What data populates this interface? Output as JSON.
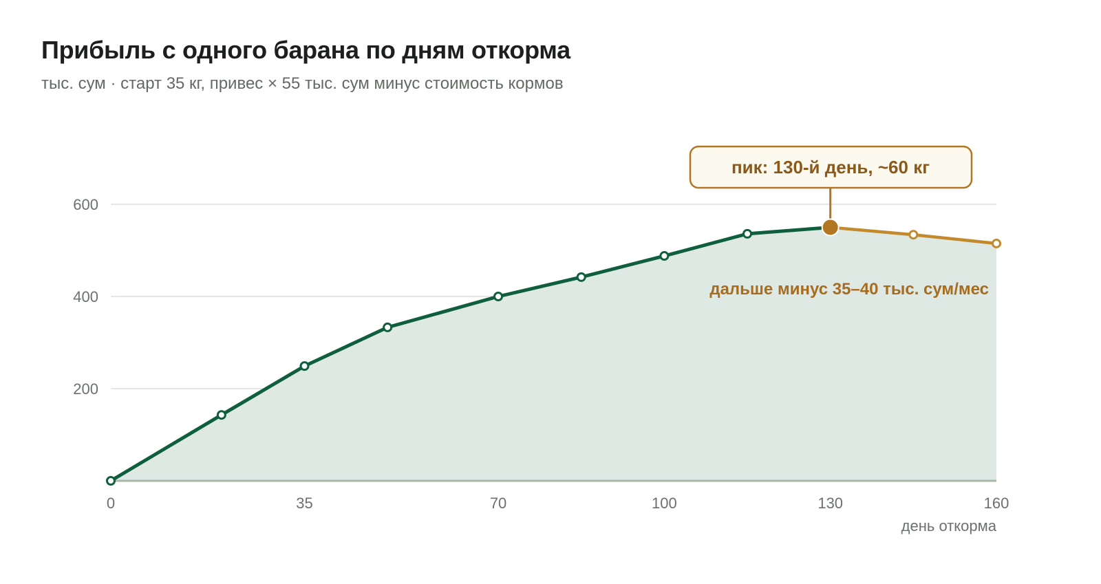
{
  "header": {
    "title": "Прибыль с одного барана по дням откорма",
    "subtitle": "тыс. сум · старт 35 кг, привес × 55 тыс. сум минус стоимость кормов"
  },
  "chart_data": {
    "type": "line",
    "title": "Прибыль с одного барана по дням откорма",
    "subtitle": "тыс. сум · старт 35 кг, привес × 55 тыс. сум минус стоимость кормов",
    "xlabel": "день откорма",
    "ylabel": "",
    "x_ticks": [
      0,
      35,
      70,
      100,
      130,
      160
    ],
    "y_ticks": [
      200,
      400,
      600
    ],
    "xlim": [
      0,
      160
    ],
    "ylim": [
      0,
      600
    ],
    "grid": true,
    "series": [
      {
        "x": [
          0,
          20,
          35,
          50,
          70,
          85,
          100,
          115,
          130,
          145,
          160
        ],
        "values": [
          0,
          143,
          249,
          333,
          400,
          442,
          488,
          536,
          550,
          534,
          515
        ]
      }
    ],
    "peak": {
      "x": 130,
      "y": 550
    },
    "annotations": {
      "peak_label": "пик: 130-й день, ~60 кг",
      "decline_label": "дальше минус 35–40 тыс. сум/мес"
    },
    "colors": {
      "line": "#0f5f3f",
      "decline": "#c28a2c",
      "peak": "#b27622",
      "fill": "#dfe9e4",
      "grid": "#dcdfdb",
      "baseline": "#a8b8a8"
    }
  }
}
